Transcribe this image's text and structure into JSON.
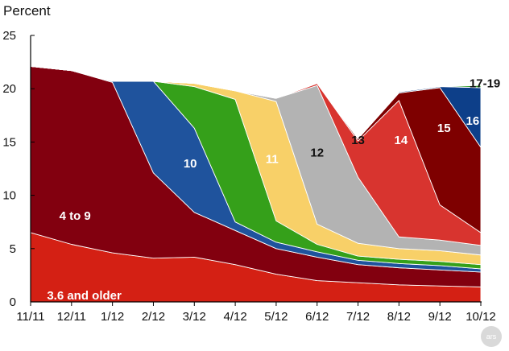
{
  "chart_data": {
    "type": "area",
    "stacked": true,
    "ylabel": "Percent",
    "xlabel": "",
    "ylim": [
      0,
      25
    ],
    "yticks": [
      0,
      5,
      10,
      15,
      20,
      25
    ],
    "categories": [
      "11/11",
      "12/11",
      "1/12",
      "2/12",
      "3/12",
      "4/12",
      "5/12",
      "6/12",
      "7/12",
      "8/12",
      "9/12",
      "10/12"
    ],
    "grid": false,
    "series": [
      {
        "name": "3.6 and older",
        "color": "#d42014",
        "label_color": "#ffffff",
        "label_at": [
          0.4,
          0.6
        ],
        "points": [
          [
            0,
            6.5
          ],
          [
            1,
            5.4
          ],
          [
            2,
            4.6
          ],
          [
            3,
            4.1
          ],
          [
            4,
            4.2
          ],
          [
            5,
            3.5
          ],
          [
            6,
            2.6
          ],
          [
            7,
            2.0
          ],
          [
            8,
            1.8
          ],
          [
            9,
            1.6
          ],
          [
            10,
            1.5
          ],
          [
            11,
            1.4
          ]
        ]
      },
      {
        "name": "4 to 9",
        "color": "#82000f",
        "label_color": "#ffffff",
        "label_at": [
          0.7,
          8.1
        ],
        "points": [
          [
            0,
            15.6
          ],
          [
            1,
            16.3
          ],
          [
            2,
            16.0
          ],
          [
            3,
            8.0
          ],
          [
            4,
            4.2
          ],
          [
            5,
            3.2
          ],
          [
            6,
            2.4
          ],
          [
            7,
            2.2
          ],
          [
            8,
            1.7
          ],
          [
            9,
            1.6
          ],
          [
            10,
            1.5
          ],
          [
            11,
            1.4
          ]
        ]
      },
      {
        "name": "10",
        "color": "#1f539d",
        "label_color": "#ffffff",
        "label_at": [
          3.9,
          13.0
        ],
        "points": [
          [
            0,
            0
          ],
          [
            1,
            0
          ],
          [
            2,
            0.1
          ],
          [
            3,
            8.6
          ],
          [
            4,
            7.9
          ],
          [
            5,
            0.8
          ],
          [
            6,
            0.6
          ],
          [
            7,
            0.5
          ],
          [
            8,
            0.4
          ],
          [
            9,
            0.4
          ],
          [
            10,
            0.4
          ],
          [
            11,
            0.3
          ]
        ]
      },
      {
        "name": "11",
        "color": "#35a01a",
        "label_color": "#ffffff",
        "label_at": [
          5.9,
          13.4
        ],
        "points": [
          [
            0,
            0
          ],
          [
            1,
            0
          ],
          [
            2,
            0
          ],
          [
            3,
            0
          ],
          [
            4,
            3.9
          ],
          [
            5,
            11.5
          ],
          [
            6,
            2.0
          ],
          [
            7,
            0.7
          ],
          [
            8,
            0.4
          ],
          [
            9,
            0.4
          ],
          [
            10,
            0.4
          ],
          [
            11,
            0.4
          ]
        ]
      },
      {
        "name": "12",
        "color": "#f8d068",
        "label_color": "#111111",
        "label_at": [
          7.0,
          14.0
        ],
        "points": [
          [
            0,
            0
          ],
          [
            1,
            0
          ],
          [
            2,
            0
          ],
          [
            3,
            0
          ],
          [
            4,
            0.3
          ],
          [
            5,
            0.8
          ],
          [
            6,
            11.2
          ],
          [
            7,
            1.9
          ],
          [
            8,
            1.2
          ],
          [
            9,
            1.0
          ],
          [
            10,
            1.0
          ],
          [
            11,
            0.9
          ]
        ]
      },
      {
        "name": "13",
        "color": "#b3b3b3",
        "label_color": "#111111",
        "label_at": [
          8.0,
          15.2
        ],
        "points": [
          [
            0,
            0
          ],
          [
            1,
            0
          ],
          [
            2,
            0
          ],
          [
            3,
            0
          ],
          [
            4,
            0
          ],
          [
            5,
            0
          ],
          [
            6,
            0.3
          ],
          [
            7,
            13.0
          ],
          [
            8,
            6.2
          ],
          [
            9,
            1.1
          ],
          [
            10,
            1.0
          ],
          [
            11,
            0.9
          ]
        ]
      },
      {
        "name": "14",
        "color": "#d8342f",
        "label_color": "#ffffff",
        "label_at": [
          9.05,
          15.2
        ],
        "points": [
          [
            0,
            0
          ],
          [
            1,
            0
          ],
          [
            2,
            0
          ],
          [
            3,
            0
          ],
          [
            4,
            0
          ],
          [
            5,
            0
          ],
          [
            6,
            0
          ],
          [
            7,
            0.2
          ],
          [
            8,
            3.4
          ],
          [
            9,
            12.8
          ],
          [
            10,
            3.3
          ],
          [
            11,
            1.2
          ]
        ]
      },
      {
        "name": "15",
        "color": "#7e0000",
        "label_color": "#ffffff",
        "label_at": [
          10.1,
          16.3
        ],
        "points": [
          [
            0,
            0
          ],
          [
            1,
            0
          ],
          [
            2,
            0
          ],
          [
            3,
            0
          ],
          [
            4,
            0
          ],
          [
            5,
            0
          ],
          [
            6,
            0
          ],
          [
            7,
            0
          ],
          [
            8,
            0.2
          ],
          [
            9,
            0.7
          ],
          [
            10,
            11.0
          ],
          [
            11,
            8.0
          ]
        ]
      },
      {
        "name": "16",
        "color": "#0d3f89",
        "label_color": "#ffffff",
        "label_at": [
          10.8,
          17.0
        ],
        "points": [
          [
            0,
            0
          ],
          [
            1,
            0
          ],
          [
            2,
            0
          ],
          [
            3,
            0
          ],
          [
            4,
            0
          ],
          [
            5,
            0
          ],
          [
            6,
            0
          ],
          [
            7,
            0
          ],
          [
            8,
            0
          ],
          [
            9,
            0.1
          ],
          [
            10,
            0.1
          ],
          [
            11,
            5.6
          ]
        ]
      },
      {
        "name": "17-19",
        "color": "#2f9b24",
        "label_color": "#111111",
        "label_at": [
          11.1,
          20.5
        ],
        "points": [
          [
            0,
            0
          ],
          [
            1,
            0
          ],
          [
            2,
            0
          ],
          [
            3,
            0
          ],
          [
            4,
            0
          ],
          [
            5,
            0
          ],
          [
            6,
            0
          ],
          [
            7,
            0
          ],
          [
            8,
            0
          ],
          [
            9,
            0
          ],
          [
            10,
            0
          ],
          [
            11,
            0.2
          ]
        ]
      }
    ],
    "watermark": "ars"
  }
}
